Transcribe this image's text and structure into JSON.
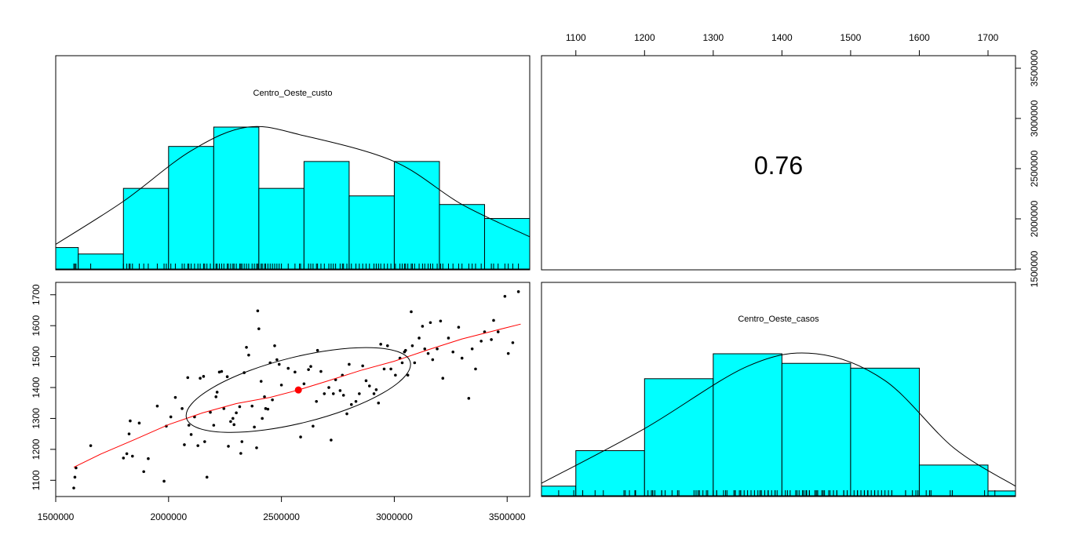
{
  "colors": {
    "bar_fill": "#00ffff",
    "point": "#000000",
    "smooth": "#ff0000",
    "center": "#ff0000",
    "frame": "#000000"
  },
  "panels": {
    "custo_title": "Centro_Oeste_custo",
    "casos_title": "Centro_Oeste_casos",
    "correlation": "0.76"
  },
  "chart_data": [
    {
      "type": "bar",
      "title": "Centro_Oeste_custo",
      "bin_edges": [
        1500000,
        1600000,
        1800000,
        2000000,
        2200000,
        2400000,
        2600000,
        2800000,
        3000000,
        3200000,
        3400000,
        3600000
      ],
      "values": [
        2.0,
        1.4,
        7.5,
        11.4,
        13.2,
        7.5,
        10.0,
        6.8,
        10.0,
        6.0,
        4.7
      ],
      "density_curve": [
        [
          1500000,
          2.3
        ],
        [
          1800000,
          6.3
        ],
        [
          2100000,
          11.0
        ],
        [
          2350000,
          13.2
        ],
        [
          2600000,
          12.4
        ],
        [
          3000000,
          10.0
        ],
        [
          3300000,
          6.0
        ],
        [
          3600000,
          3.0
        ]
      ]
    },
    {
      "type": "bar",
      "title": "Centro_Oeste_casos",
      "x_ticks": [
        "1100",
        "1200",
        "1300",
        "1400",
        "1500",
        "1600",
        "1700"
      ],
      "bin_edges": [
        1050,
        1100,
        1200,
        1300,
        1400,
        1500,
        1600,
        1700,
        1740
      ],
      "values": [
        1.0,
        4.7,
        12.2,
        14.8,
        13.8,
        13.3,
        3.2,
        0.5
      ],
      "density_curve": [
        [
          1050,
          1.3
        ],
        [
          1200,
          7.0
        ],
        [
          1350,
          13.5
        ],
        [
          1450,
          14.8
        ],
        [
          1550,
          12.0
        ],
        [
          1650,
          5.0
        ],
        [
          1740,
          1.0
        ]
      ]
    },
    {
      "type": "scatter",
      "x_ticks": [
        "1500000",
        "2000000",
        "2500000",
        "3000000",
        "3500000"
      ],
      "y_ticks": [
        "1100",
        "1200",
        "1300",
        "1400",
        "1500",
        "1600",
        "1700"
      ],
      "y_ticks_upper_right": [
        "1500000",
        "2000000",
        "2500000",
        "3000000",
        "3500000"
      ],
      "xlim": [
        1500000,
        3600000
      ],
      "ylim": [
        1050,
        1740
      ],
      "points": [
        [
          1580000,
          1075
        ],
        [
          1585000,
          1110
        ],
        [
          1590000,
          1140
        ],
        [
          1655000,
          1212
        ],
        [
          1800000,
          1172
        ],
        [
          1815000,
          1186
        ],
        [
          1825000,
          1250
        ],
        [
          1830000,
          1292
        ],
        [
          1840000,
          1178
        ],
        [
          1870000,
          1285
        ],
        [
          1890000,
          1128
        ],
        [
          1910000,
          1170
        ],
        [
          1950000,
          1340
        ],
        [
          1980000,
          1097
        ],
        [
          1990000,
          1275
        ],
        [
          2010000,
          1305
        ],
        [
          2030000,
          1368
        ],
        [
          2060000,
          1332
        ],
        [
          2070000,
          1215
        ],
        [
          2085000,
          1432
        ],
        [
          2090000,
          1278
        ],
        [
          2100000,
          1248
        ],
        [
          2115000,
          1305
        ],
        [
          2130000,
          1212
        ],
        [
          2140000,
          1430
        ],
        [
          2155000,
          1436
        ],
        [
          2160000,
          1225
        ],
        [
          2170000,
          1110
        ],
        [
          2185000,
          1320
        ],
        [
          2200000,
          1278
        ],
        [
          2210000,
          1370
        ],
        [
          2215000,
          1385
        ],
        [
          2225000,
          1450
        ],
        [
          2235000,
          1452
        ],
        [
          2245000,
          1332
        ],
        [
          2260000,
          1435
        ],
        [
          2265000,
          1210
        ],
        [
          2275000,
          1290
        ],
        [
          2285000,
          1300
        ],
        [
          2290000,
          1280
        ],
        [
          2300000,
          1318
        ],
        [
          2315000,
          1338
        ],
        [
          2320000,
          1187
        ],
        [
          2325000,
          1225
        ],
        [
          2335000,
          1448
        ],
        [
          2345000,
          1530
        ],
        [
          2355000,
          1505
        ],
        [
          2370000,
          1340
        ],
        [
          2380000,
          1272
        ],
        [
          2390000,
          1205
        ],
        [
          2395000,
          1648
        ],
        [
          2400000,
          1590
        ],
        [
          2410000,
          1420
        ],
        [
          2415000,
          1300
        ],
        [
          2425000,
          1370
        ],
        [
          2430000,
          1332
        ],
        [
          2440000,
          1330
        ],
        [
          2450000,
          1480
        ],
        [
          2460000,
          1360
        ],
        [
          2470000,
          1535
        ],
        [
          2480000,
          1490
        ],
        [
          2490000,
          1475
        ],
        [
          2500000,
          1408
        ],
        [
          2530000,
          1462
        ],
        [
          2560000,
          1450
        ],
        [
          2580000,
          1390
        ],
        [
          2585000,
          1240
        ],
        [
          2600000,
          1412
        ],
        [
          2620000,
          1458
        ],
        [
          2630000,
          1468
        ],
        [
          2640000,
          1275
        ],
        [
          2655000,
          1355
        ],
        [
          2660000,
          1520
        ],
        [
          2675000,
          1452
        ],
        [
          2690000,
          1380
        ],
        [
          2710000,
          1400
        ],
        [
          2720000,
          1230
        ],
        [
          2730000,
          1380
        ],
        [
          2740000,
          1425
        ],
        [
          2760000,
          1390
        ],
        [
          2770000,
          1440
        ],
        [
          2775000,
          1375
        ],
        [
          2790000,
          1315
        ],
        [
          2800000,
          1475
        ],
        [
          2810000,
          1345
        ],
        [
          2830000,
          1355
        ],
        [
          2845000,
          1380
        ],
        [
          2860000,
          1470
        ],
        [
          2875000,
          1422
        ],
        [
          2890000,
          1405
        ],
        [
          2910000,
          1380
        ],
        [
          2920000,
          1393
        ],
        [
          2930000,
          1350
        ],
        [
          2940000,
          1540
        ],
        [
          2955000,
          1460
        ],
        [
          2970000,
          1535
        ],
        [
          2985000,
          1460
        ],
        [
          3005000,
          1440
        ],
        [
          3025000,
          1495
        ],
        [
          3035000,
          1480
        ],
        [
          3045000,
          1515
        ],
        [
          3050000,
          1520
        ],
        [
          3060000,
          1440
        ],
        [
          3075000,
          1645
        ],
        [
          3080000,
          1535
        ],
        [
          3090000,
          1480
        ],
        [
          3110000,
          1560
        ],
        [
          3125000,
          1598
        ],
        [
          3135000,
          1525
        ],
        [
          3150000,
          1510
        ],
        [
          3160000,
          1610
        ],
        [
          3170000,
          1490
        ],
        [
          3190000,
          1525
        ],
        [
          3205000,
          1615
        ],
        [
          3215000,
          1430
        ],
        [
          3240000,
          1560
        ],
        [
          3260000,
          1515
        ],
        [
          3285000,
          1595
        ],
        [
          3300000,
          1495
        ],
        [
          3330000,
          1365
        ],
        [
          3345000,
          1525
        ],
        [
          3360000,
          1460
        ],
        [
          3385000,
          1550
        ],
        [
          3400000,
          1580
        ],
        [
          3430000,
          1555
        ],
        [
          3440000,
          1617
        ],
        [
          3460000,
          1580
        ],
        [
          3490000,
          1695
        ],
        [
          3505000,
          1510
        ],
        [
          3525000,
          1545
        ],
        [
          3550000,
          1710
        ]
      ],
      "smooth_line": [
        [
          1580000,
          1142
        ],
        [
          1700000,
          1185
        ],
        [
          1850000,
          1232
        ],
        [
          2000000,
          1280
        ],
        [
          2150000,
          1318
        ],
        [
          2300000,
          1348
        ],
        [
          2450000,
          1368
        ],
        [
          2575000,
          1392
        ],
        [
          2700000,
          1420
        ],
        [
          2850000,
          1455
        ],
        [
          3000000,
          1485
        ],
        [
          3150000,
          1522
        ],
        [
          3300000,
          1557
        ],
        [
          3450000,
          1585
        ],
        [
          3560000,
          1605
        ]
      ],
      "center": [
        2575000,
        1392
      ]
    }
  ]
}
